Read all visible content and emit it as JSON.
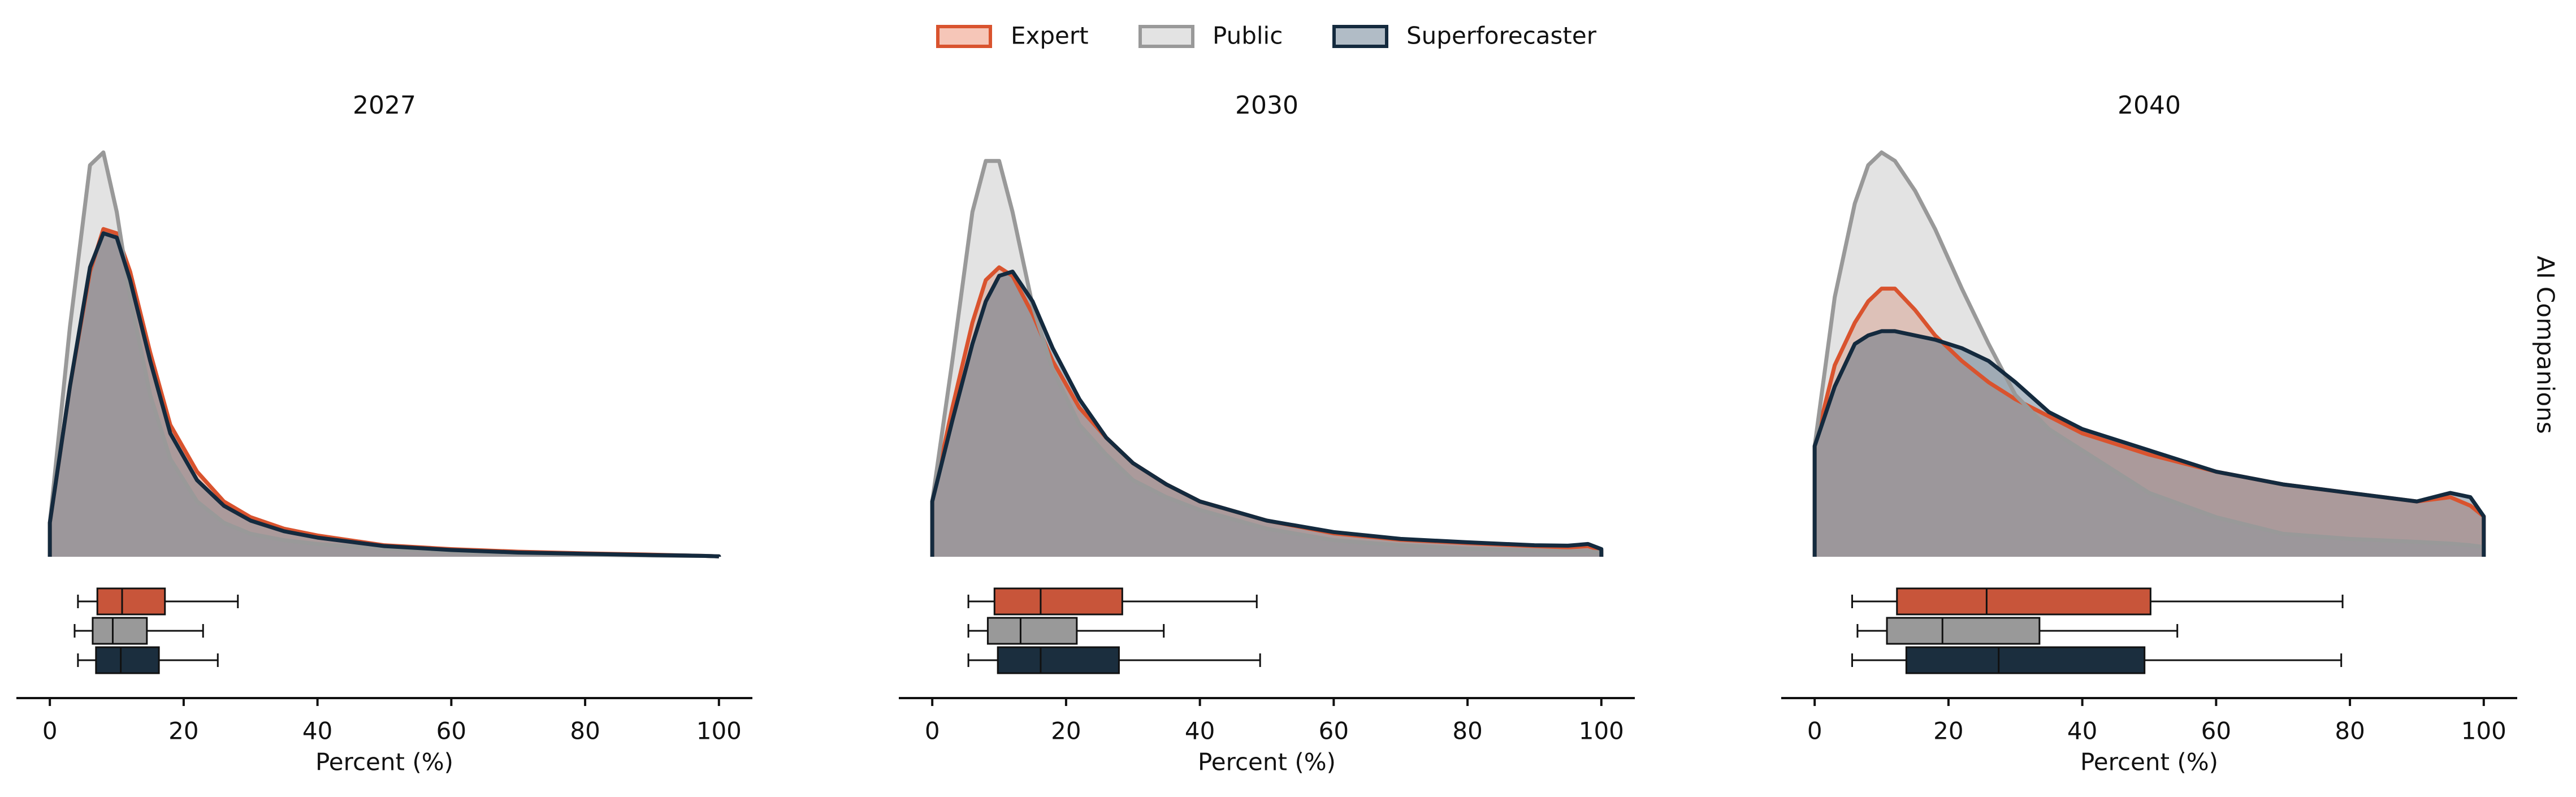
{
  "facet_label": "AI Companions",
  "chart_data": [
    {
      "type": "density",
      "title": "2027",
      "xlabel": "Percent (%)",
      "xlim": [
        -5,
        105
      ],
      "xticks": [
        0,
        20,
        40,
        60,
        80,
        100
      ],
      "ylim": [
        0,
        0.1
      ],
      "x": [
        0,
        3,
        6,
        8,
        10,
        12,
        15,
        18,
        22,
        26,
        30,
        35,
        40,
        50,
        60,
        70,
        80,
        90,
        95,
        98,
        100
      ],
      "series": [
        {
          "name": "Expert",
          "color": "#d9532e",
          "fill": "#e8714d",
          "box_color": "#c8553a",
          "values": [
            0.008,
            0.04,
            0.067,
            0.077,
            0.076,
            0.067,
            0.048,
            0.031,
            0.02,
            0.013,
            0.0093,
            0.0066,
            0.005,
            0.0027,
            0.0018,
            0.0012,
            0.0008,
            0.0005,
            0.0003,
            0.0002,
            0.0001
          ],
          "box": [
            4.2,
            7.1,
            10.8,
            17.2,
            28.1
          ]
        },
        {
          "name": "Public",
          "color": "#999999",
          "fill": "#b8b8b8",
          "box_color": "#999999",
          "values": [
            0.008,
            0.054,
            0.092,
            0.095,
            0.081,
            0.061,
            0.038,
            0.023,
            0.013,
            0.008,
            0.0054,
            0.0039,
            0.003,
            0.0019,
            0.0012,
            0.0008,
            0.0005,
            0.0003,
            0.0002,
            0.0002,
            0.0001
          ],
          "box": [
            3.7,
            6.4,
            9.4,
            14.5,
            22.9
          ]
        },
        {
          "name": "Superforecaster",
          "color": "#142a3e",
          "fill": "#3b5770",
          "box_color": "#1b2e3e",
          "values": [
            0.008,
            0.04,
            0.068,
            0.076,
            0.075,
            0.065,
            0.046,
            0.029,
            0.018,
            0.012,
            0.0085,
            0.006,
            0.0045,
            0.0025,
            0.0016,
            0.001,
            0.0007,
            0.0004,
            0.0003,
            0.0002,
            0.0001
          ],
          "box": [
            4.2,
            6.9,
            10.6,
            16.3,
            25.1
          ]
        }
      ]
    },
    {
      "type": "density",
      "title": "2030",
      "xlabel": "Percent (%)",
      "xlim": [
        -5,
        105
      ],
      "xticks": [
        0,
        20,
        40,
        60,
        80,
        100
      ],
      "ylim": [
        0,
        0.1
      ],
      "x": [
        0,
        3,
        6,
        8,
        10,
        12,
        15,
        18,
        22,
        26,
        30,
        35,
        40,
        50,
        60,
        70,
        80,
        90,
        95,
        98,
        100
      ],
      "series": [
        {
          "name": "Expert",
          "color": "#d9532e",
          "fill": "#e8714d",
          "box_color": "#c8553a",
          "values": [
            0.013,
            0.035,
            0.055,
            0.065,
            0.068,
            0.066,
            0.057,
            0.046,
            0.035,
            0.028,
            0.022,
            0.017,
            0.013,
            0.0085,
            0.0055,
            0.004,
            0.0032,
            0.0025,
            0.0022,
            0.0025,
            0.0015
          ],
          "box": [
            5.4,
            9.3,
            16.2,
            28.4,
            48.5
          ]
        },
        {
          "name": "Public",
          "color": "#999999",
          "fill": "#b8b8b8",
          "box_color": "#999999",
          "values": [
            0.013,
            0.046,
            0.081,
            0.093,
            0.093,
            0.081,
            0.059,
            0.044,
            0.031,
            0.024,
            0.018,
            0.014,
            0.011,
            0.0066,
            0.0039,
            0.0027,
            0.0019,
            0.0015,
            0.0013,
            0.0013,
            0.001
          ],
          "box": [
            5.4,
            8.3,
            13.2,
            21.6,
            34.6
          ]
        },
        {
          "name": "Superforecaster",
          "color": "#142a3e",
          "fill": "#3b5770",
          "box_color": "#1b2e3e",
          "values": [
            0.013,
            0.032,
            0.05,
            0.06,
            0.066,
            0.067,
            0.06,
            0.049,
            0.037,
            0.028,
            0.022,
            0.017,
            0.013,
            0.0085,
            0.0058,
            0.0042,
            0.0034,
            0.0027,
            0.0026,
            0.003,
            0.0018
          ],
          "box": [
            5.4,
            9.8,
            16.2,
            27.9,
            49
          ]
        }
      ]
    },
    {
      "type": "density",
      "title": "2040",
      "xlabel": "Percent (%)",
      "xlim": [
        -5,
        105
      ],
      "xticks": [
        0,
        20,
        40,
        60,
        80,
        100
      ],
      "ylim": [
        0,
        0.1
      ],
      "x": [
        0,
        3,
        6,
        8,
        10,
        12,
        15,
        18,
        22,
        26,
        30,
        35,
        40,
        50,
        60,
        70,
        80,
        90,
        95,
        98,
        100
      ],
      "series": [
        {
          "name": "Expert",
          "color": "#d9532e",
          "fill": "#e8714d",
          "box_color": "#c8553a",
          "values": [
            0.026,
            0.045,
            0.055,
            0.06,
            0.063,
            0.063,
            0.058,
            0.052,
            0.046,
            0.041,
            0.037,
            0.033,
            0.029,
            0.024,
            0.02,
            0.017,
            0.015,
            0.013,
            0.014,
            0.012,
            0.0095
          ],
          "box": [
            5.6,
            12.3,
            25.7,
            50.2,
            78.9
          ]
        },
        {
          "name": "Public",
          "color": "#999999",
          "fill": "#b8b8b8",
          "box_color": "#999999",
          "values": [
            0.026,
            0.061,
            0.083,
            0.092,
            0.095,
            0.093,
            0.086,
            0.077,
            0.063,
            0.05,
            0.038,
            0.03,
            0.025,
            0.015,
            0.0093,
            0.0054,
            0.0042,
            0.0035,
            0.0031,
            0.0027,
            0.0023
          ],
          "box": [
            6.4,
            10.8,
            19.1,
            33.6,
            54.2
          ]
        },
        {
          "name": "Superforecaster",
          "color": "#142a3e",
          "fill": "#3b5770",
          "box_color": "#1b2e3e",
          "values": [
            0.026,
            0.04,
            0.05,
            0.052,
            0.053,
            0.053,
            0.052,
            0.051,
            0.049,
            0.046,
            0.041,
            0.034,
            0.03,
            0.025,
            0.02,
            0.017,
            0.015,
            0.013,
            0.015,
            0.014,
            0.0095
          ],
          "box": [
            5.6,
            13.7,
            27.5,
            49.3,
            78.7
          ]
        }
      ]
    }
  ]
}
